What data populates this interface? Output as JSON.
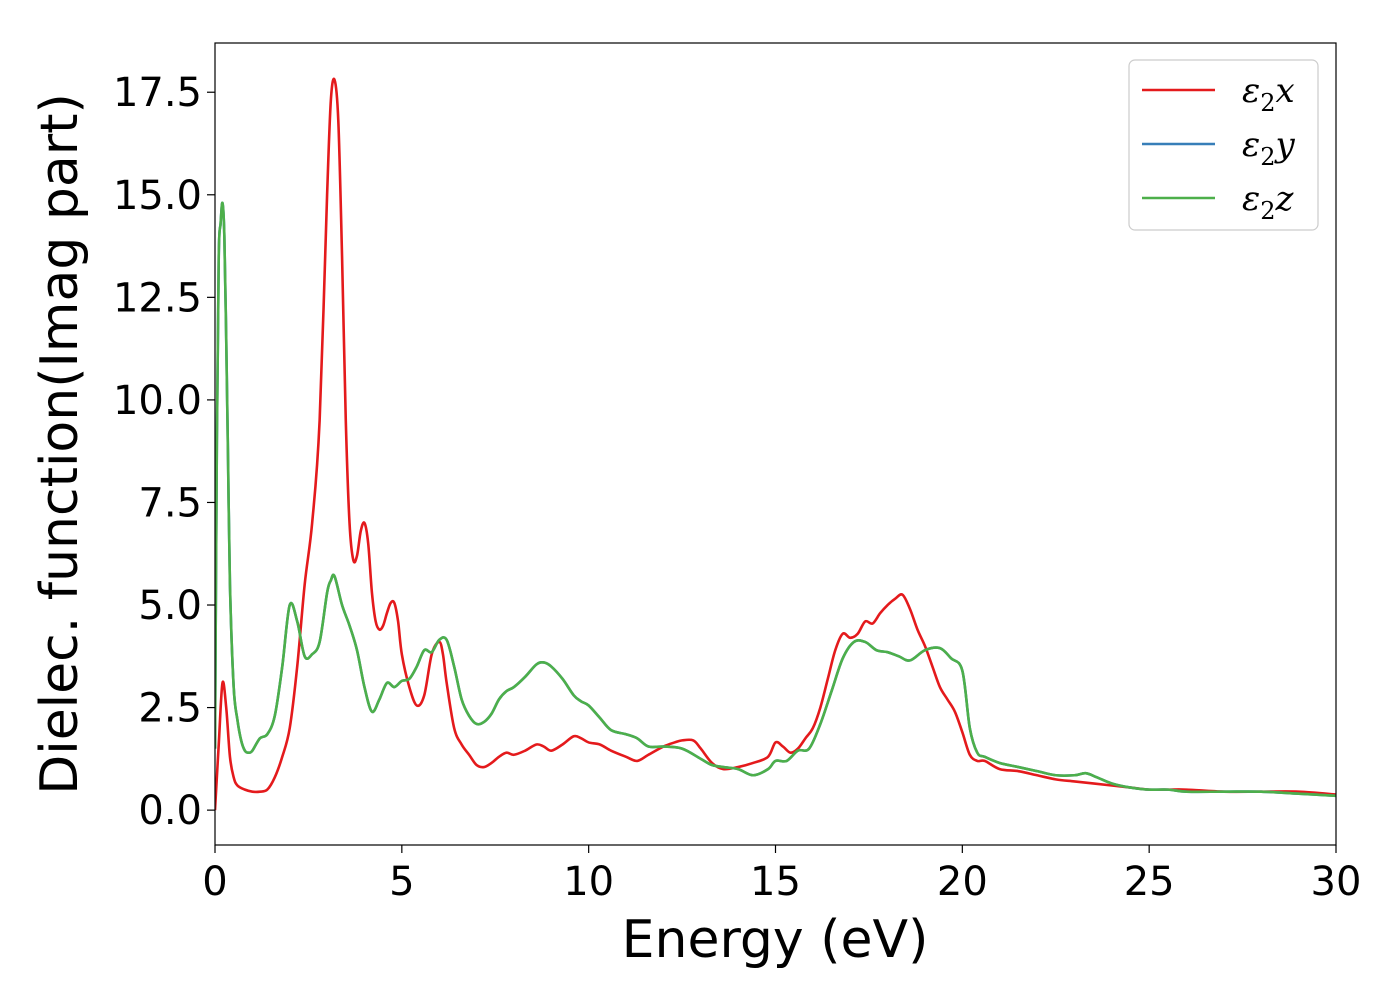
{
  "chart_data": {
    "type": "line",
    "title": "",
    "xlabel": "Energy (eV)",
    "ylabel": "Dielec. function(Imag part)",
    "xlim": [
      0,
      30
    ],
    "ylim": [
      -0.85,
      18.7
    ],
    "xticks": [
      0,
      5,
      10,
      15,
      20,
      25,
      30
    ],
    "xtick_labels": [
      "0",
      "5",
      "10",
      "15",
      "20",
      "25",
      "30"
    ],
    "yticks": [
      0,
      2.5,
      5,
      7.5,
      10,
      12.5,
      15,
      17.5
    ],
    "ytick_labels": [
      "0.0",
      "2.5",
      "5.0",
      "7.5",
      "10.0",
      "12.5",
      "15.0",
      "17.5"
    ],
    "grid": false,
    "legend_position": "top-right",
    "series": [
      {
        "name": "ε₂x",
        "legend_main": "ε",
        "legend_sub": "2",
        "legend_suffix": "x",
        "color": "#e41a1c",
        "x": [
          0,
          0.1,
          0.2,
          0.3,
          0.4,
          0.5,
          0.6,
          0.8,
          1.0,
          1.2,
          1.4,
          1.6,
          1.8,
          2.0,
          2.2,
          2.4,
          2.6,
          2.8,
          3.0,
          3.1,
          3.2,
          3.3,
          3.4,
          3.5,
          3.6,
          3.7,
          3.8,
          3.9,
          4.0,
          4.1,
          4.2,
          4.3,
          4.4,
          4.5,
          4.6,
          4.7,
          4.8,
          4.9,
          5.0,
          5.2,
          5.4,
          5.6,
          5.8,
          6.0,
          6.1,
          6.2,
          6.4,
          6.6,
          6.8,
          7.0,
          7.2,
          7.4,
          7.6,
          7.8,
          8.0,
          8.3,
          8.6,
          8.8,
          9.0,
          9.3,
          9.6,
          9.8,
          10.0,
          10.3,
          10.6,
          11.0,
          11.3,
          11.6,
          12.0,
          12.3,
          12.5,
          12.8,
          13.0,
          13.3,
          13.6,
          14.0,
          14.4,
          14.8,
          15.0,
          15.2,
          15.4,
          15.6,
          15.8,
          16.0,
          16.2,
          16.4,
          16.6,
          16.8,
          17.0,
          17.2,
          17.4,
          17.6,
          17.8,
          18.0,
          18.2,
          18.4,
          18.6,
          18.8,
          19.0,
          19.2,
          19.4,
          19.6,
          19.8,
          20.0,
          20.2,
          20.4,
          20.6,
          21.0,
          21.5,
          22.0,
          22.5,
          23.0,
          23.5,
          24.0,
          24.5,
          25.0,
          25.5,
          26.0,
          27.0,
          28.0,
          29.0,
          30.0
        ],
        "y": [
          0.0,
          1.6,
          3.1,
          2.5,
          1.3,
          0.8,
          0.6,
          0.5,
          0.45,
          0.45,
          0.5,
          0.8,
          1.3,
          2.0,
          3.5,
          5.5,
          7.0,
          9.5,
          15.0,
          17.3,
          17.8,
          16.8,
          13.5,
          9.5,
          7.0,
          6.1,
          6.2,
          6.8,
          7.0,
          6.5,
          5.3,
          4.6,
          4.4,
          4.5,
          4.8,
          5.05,
          5.05,
          4.6,
          3.8,
          3.0,
          2.55,
          2.8,
          3.8,
          4.1,
          3.8,
          3.1,
          2.0,
          1.6,
          1.35,
          1.1,
          1.05,
          1.15,
          1.3,
          1.4,
          1.35,
          1.45,
          1.6,
          1.55,
          1.45,
          1.6,
          1.8,
          1.75,
          1.65,
          1.6,
          1.45,
          1.3,
          1.2,
          1.35,
          1.55,
          1.65,
          1.7,
          1.7,
          1.5,
          1.15,
          1.0,
          1.05,
          1.15,
          1.3,
          1.65,
          1.55,
          1.4,
          1.5,
          1.75,
          2.0,
          2.5,
          3.2,
          3.9,
          4.3,
          4.2,
          4.3,
          4.6,
          4.55,
          4.8,
          5.0,
          5.15,
          5.25,
          4.9,
          4.4,
          4.0,
          3.5,
          3.0,
          2.7,
          2.4,
          1.9,
          1.35,
          1.2,
          1.2,
          1.0,
          0.95,
          0.85,
          0.75,
          0.7,
          0.65,
          0.6,
          0.55,
          0.5,
          0.5,
          0.5,
          0.45,
          0.45,
          0.45,
          0.38
        ]
      },
      {
        "name": "ε₂y",
        "legend_main": "ε",
        "legend_sub": "2",
        "legend_suffix": "y",
        "color": "#377eb8",
        "x": [
          0,
          0.05,
          0.1,
          0.15,
          0.2,
          0.25,
          0.3,
          0.35,
          0.4,
          0.5,
          0.6,
          0.7,
          0.8,
          0.9,
          1.0,
          1.2,
          1.4,
          1.6,
          1.8,
          2.0,
          2.2,
          2.4,
          2.6,
          2.8,
          3.0,
          3.1,
          3.2,
          3.4,
          3.6,
          3.8,
          4.0,
          4.2,
          4.4,
          4.6,
          4.8,
          5.0,
          5.2,
          5.4,
          5.6,
          5.8,
          6.0,
          6.2,
          6.4,
          6.6,
          6.8,
          7.0,
          7.2,
          7.4,
          7.6,
          7.8,
          8.0,
          8.3,
          8.6,
          8.8,
          9.0,
          9.3,
          9.6,
          9.8,
          10.0,
          10.3,
          10.6,
          11.0,
          11.3,
          11.6,
          12.0,
          12.5,
          13.0,
          13.3,
          13.6,
          14.0,
          14.4,
          14.8,
          15.0,
          15.3,
          15.6,
          15.9,
          16.2,
          16.5,
          16.8,
          17.1,
          17.4,
          17.7,
          18.0,
          18.3,
          18.6,
          19.0,
          19.4,
          19.7,
          20.0,
          20.2,
          20.4,
          20.6,
          21.0,
          21.5,
          22.0,
          22.5,
          23.0,
          23.3,
          23.6,
          24.0,
          24.5,
          25.0,
          25.5,
          26.0,
          27.0,
          28.0,
          29.0,
          30.0
        ],
        "y": [
          1.5,
          9.0,
          13.5,
          14.3,
          14.8,
          14.0,
          11.5,
          8.5,
          5.5,
          3.0,
          2.2,
          1.7,
          1.45,
          1.4,
          1.45,
          1.75,
          1.85,
          2.3,
          3.5,
          5.0,
          4.6,
          3.75,
          3.8,
          4.1,
          5.3,
          5.6,
          5.7,
          5.0,
          4.5,
          3.9,
          3.0,
          2.4,
          2.7,
          3.1,
          3.0,
          3.15,
          3.2,
          3.5,
          3.9,
          3.85,
          4.15,
          4.15,
          3.5,
          2.7,
          2.3,
          2.1,
          2.15,
          2.35,
          2.7,
          2.9,
          3.0,
          3.25,
          3.55,
          3.6,
          3.5,
          3.2,
          2.8,
          2.65,
          2.55,
          2.25,
          1.95,
          1.85,
          1.75,
          1.55,
          1.55,
          1.5,
          1.25,
          1.1,
          1.05,
          1.0,
          0.85,
          1.0,
          1.2,
          1.2,
          1.45,
          1.5,
          2.1,
          2.9,
          3.7,
          4.1,
          4.1,
          3.9,
          3.85,
          3.75,
          3.65,
          3.9,
          3.95,
          3.7,
          3.4,
          2.0,
          1.4,
          1.3,
          1.15,
          1.05,
          0.95,
          0.85,
          0.85,
          0.9,
          0.8,
          0.65,
          0.55,
          0.5,
          0.5,
          0.45,
          0.45,
          0.45,
          0.4,
          0.35
        ]
      },
      {
        "name": "ε₂z",
        "legend_main": "ε",
        "legend_sub": "2",
        "legend_suffix": "z",
        "color": "#4daf4a",
        "x": [
          0,
          0.05,
          0.1,
          0.15,
          0.2,
          0.25,
          0.3,
          0.35,
          0.4,
          0.5,
          0.6,
          0.7,
          0.8,
          0.9,
          1.0,
          1.2,
          1.4,
          1.6,
          1.8,
          2.0,
          2.2,
          2.4,
          2.6,
          2.8,
          3.0,
          3.1,
          3.2,
          3.4,
          3.6,
          3.8,
          4.0,
          4.2,
          4.4,
          4.6,
          4.8,
          5.0,
          5.2,
          5.4,
          5.6,
          5.8,
          6.0,
          6.2,
          6.4,
          6.6,
          6.8,
          7.0,
          7.2,
          7.4,
          7.6,
          7.8,
          8.0,
          8.3,
          8.6,
          8.8,
          9.0,
          9.3,
          9.6,
          9.8,
          10.0,
          10.3,
          10.6,
          11.0,
          11.3,
          11.6,
          12.0,
          12.5,
          13.0,
          13.3,
          13.6,
          14.0,
          14.4,
          14.8,
          15.0,
          15.3,
          15.6,
          15.9,
          16.2,
          16.5,
          16.8,
          17.1,
          17.4,
          17.7,
          18.0,
          18.3,
          18.6,
          19.0,
          19.4,
          19.7,
          20.0,
          20.2,
          20.4,
          20.6,
          21.0,
          21.5,
          22.0,
          22.5,
          23.0,
          23.3,
          23.6,
          24.0,
          24.5,
          25.0,
          25.5,
          26.0,
          27.0,
          28.0,
          29.0,
          30.0
        ],
        "y": [
          1.5,
          9.0,
          13.5,
          14.3,
          14.8,
          14.0,
          11.5,
          8.5,
          5.5,
          3.0,
          2.2,
          1.7,
          1.45,
          1.4,
          1.45,
          1.75,
          1.85,
          2.3,
          3.5,
          5.0,
          4.6,
          3.75,
          3.8,
          4.1,
          5.3,
          5.6,
          5.7,
          5.0,
          4.5,
          3.9,
          3.0,
          2.4,
          2.7,
          3.1,
          3.0,
          3.15,
          3.2,
          3.5,
          3.9,
          3.85,
          4.15,
          4.15,
          3.5,
          2.7,
          2.3,
          2.1,
          2.15,
          2.35,
          2.7,
          2.9,
          3.0,
          3.25,
          3.55,
          3.6,
          3.5,
          3.2,
          2.8,
          2.65,
          2.55,
          2.25,
          1.95,
          1.85,
          1.75,
          1.55,
          1.55,
          1.5,
          1.25,
          1.1,
          1.05,
          1.0,
          0.85,
          1.0,
          1.2,
          1.2,
          1.45,
          1.5,
          2.1,
          2.9,
          3.7,
          4.1,
          4.1,
          3.9,
          3.85,
          3.75,
          3.65,
          3.9,
          3.95,
          3.7,
          3.4,
          2.0,
          1.4,
          1.3,
          1.15,
          1.05,
          0.95,
          0.85,
          0.85,
          0.9,
          0.8,
          0.65,
          0.55,
          0.5,
          0.5,
          0.45,
          0.45,
          0.45,
          0.4,
          0.35
        ]
      }
    ]
  }
}
